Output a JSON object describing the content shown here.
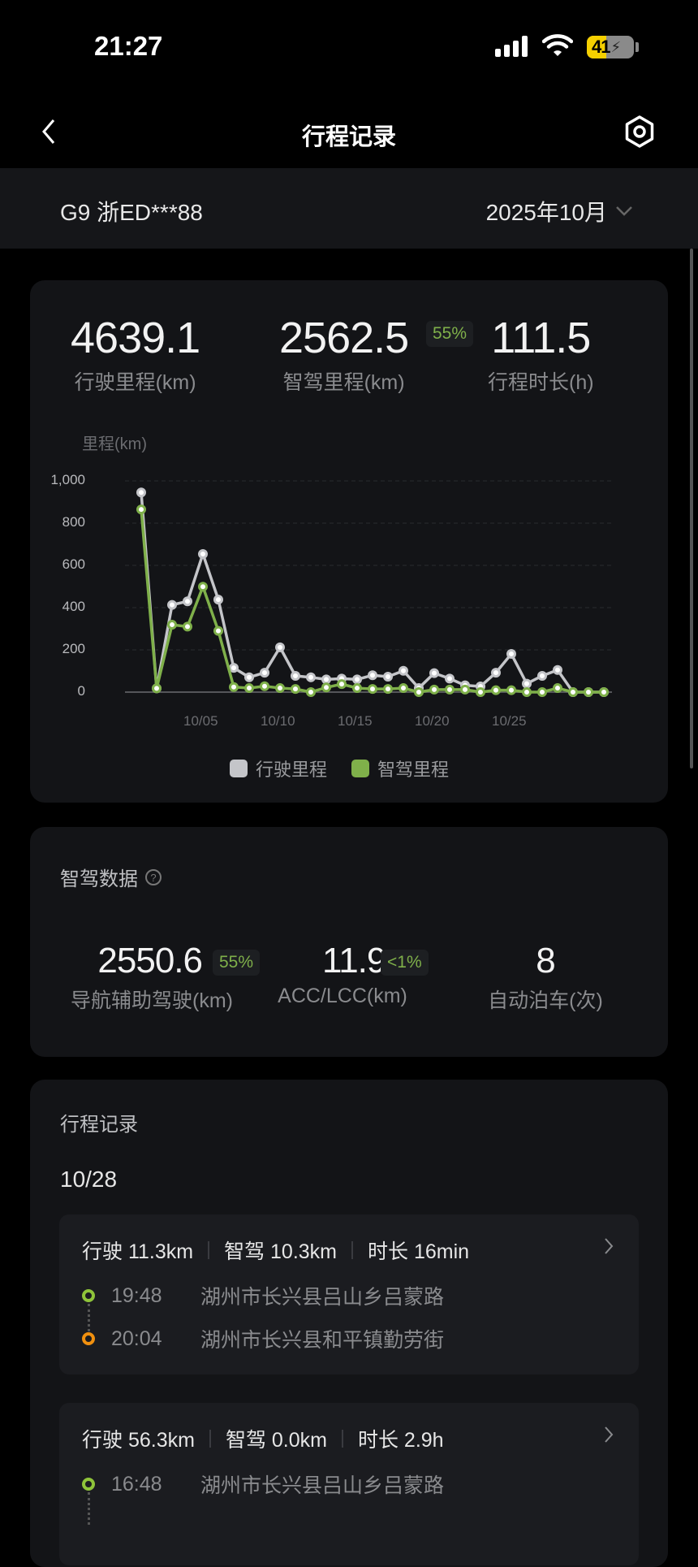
{
  "status_bar": {
    "time": "21:27",
    "battery": "41",
    "battery_level_percent": 41
  },
  "header": {
    "title": "行程记录",
    "back_icon": "chevron-left-icon",
    "settings_icon": "hex-nut-settings-icon"
  },
  "vehicle_bar": {
    "vehicle": "G9 浙ED***88",
    "month": "2025年10月"
  },
  "summary": {
    "drive_distance": {
      "value": "4639.1",
      "label": "行驶里程(km)"
    },
    "smart_distance": {
      "value": "2562.5",
      "badge": "55%",
      "label": "智驾里程(km)"
    },
    "duration": {
      "value": "111.5",
      "label": "行程时长(h)"
    }
  },
  "chart_data": {
    "type": "line",
    "ylabel": "里程(km)",
    "ylim": [
      0,
      1000
    ],
    "yticks": [
      "0",
      "200",
      "400",
      "600",
      "800",
      "1,000"
    ],
    "x": [
      "10/01",
      "10/02",
      "10/03",
      "10/04",
      "10/05",
      "10/06",
      "10/07",
      "10/08",
      "10/09",
      "10/10",
      "10/11",
      "10/12",
      "10/13",
      "10/14",
      "10/15",
      "10/16",
      "10/17",
      "10/18",
      "10/19",
      "10/20",
      "10/21",
      "10/22",
      "10/23",
      "10/24",
      "10/25",
      "10/26",
      "10/27",
      "10/28",
      "10/29",
      "10/30",
      "10/31"
    ],
    "xticks": [
      "10/05",
      "10/10",
      "10/15",
      "10/20",
      "10/25"
    ],
    "grid": true,
    "legend_position": "bottom",
    "series": [
      {
        "name": "行驶里程",
        "color": "#c4c5c9",
        "values": [
          945,
          18,
          413,
          430,
          654,
          438,
          115,
          70,
          92,
          212,
          77,
          70,
          60,
          64,
          60,
          80,
          73,
          101,
          19,
          90,
          64,
          32,
          27,
          92,
          181,
          40,
          77,
          105,
          0,
          0,
          0
        ]
      },
      {
        "name": "智驾里程",
        "color": "#7fb04a",
        "values": [
          865,
          18,
          319,
          310,
          499,
          290,
          24,
          19,
          28,
          19,
          15,
          0,
          22,
          38,
          19,
          15,
          15,
          19,
          0,
          12,
          12,
          12,
          0,
          9,
          9,
          0,
          0,
          19,
          0,
          0,
          0
        ]
      }
    ]
  },
  "smart_data": {
    "title": "智驾数据",
    "help_icon": "question-circle-icon",
    "nav_assist": {
      "value": "2550.6",
      "badge": "55%",
      "label": "导航辅助驾驶(km)"
    },
    "acc_lcc": {
      "value": "11.9",
      "badge": "<1%",
      "label": "ACC/LCC(km)"
    },
    "parking": {
      "value": "8",
      "label": "自动泊车(次)"
    }
  },
  "trips": {
    "title": "行程记录",
    "date": "10/28",
    "items": [
      {
        "drive": "行驶 11.3km",
        "smart": "智驾 10.3km",
        "duration": "时长 16min",
        "start_time": "19:48",
        "start": "湖州市长兴县吕山乡吕蒙路",
        "end_time": "20:04",
        "end": "湖州市长兴县和平镇勤劳街"
      },
      {
        "drive": "行驶 56.3km",
        "smart": "智驾 0.0km",
        "duration": "时长 2.9h",
        "start_time": "16:48",
        "start": "湖州市长兴县吕山乡吕蒙路"
      }
    ]
  },
  "colors": {
    "accent_green": "#7fb04a",
    "end_orange": "#f0900f",
    "battery_yellow": "#f5d000"
  }
}
